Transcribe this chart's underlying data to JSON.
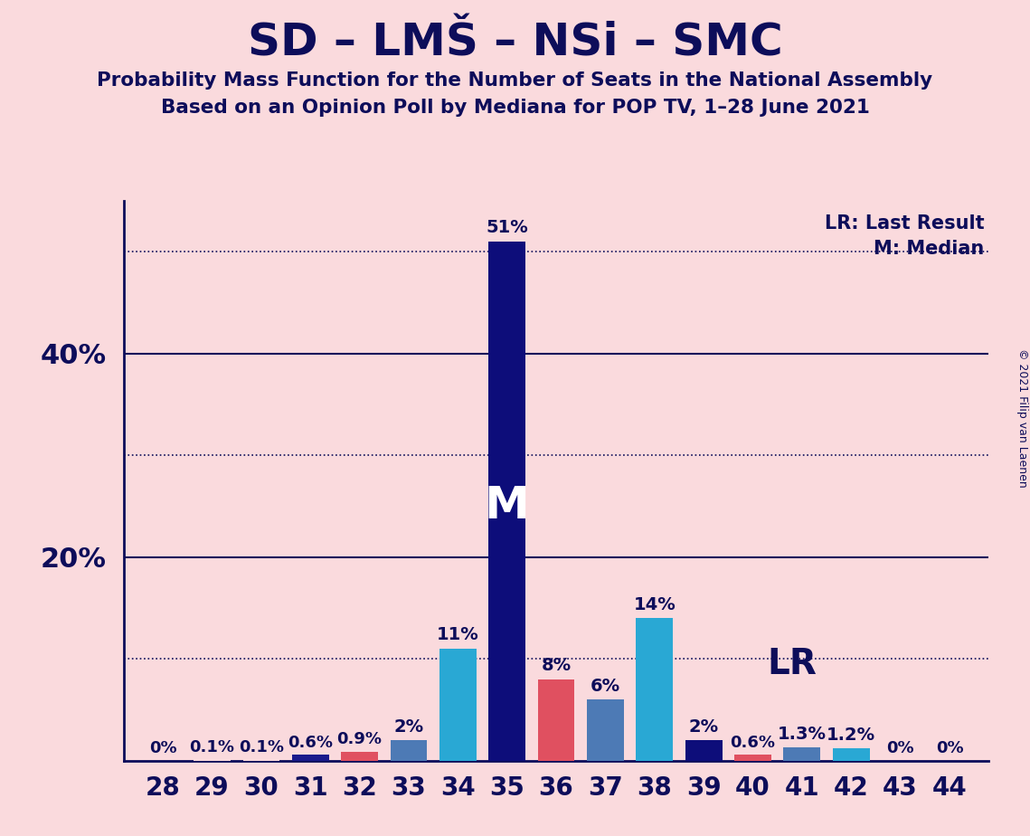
{
  "title": "SD – LMŠ – NSi – SMC",
  "subtitle1": "Probability Mass Function for the Number of Seats in the National Assembly",
  "subtitle2": "Based on an Opinion Poll by Mediana for POP TV, 1–28 June 2021",
  "copyright": "© 2021 Filip van Laenen",
  "seats": [
    28,
    29,
    30,
    31,
    32,
    33,
    34,
    35,
    36,
    37,
    38,
    39,
    40,
    41,
    42,
    43,
    44
  ],
  "probabilities": [
    0.0,
    0.1,
    0.1,
    0.6,
    0.9,
    2.0,
    11.0,
    51.0,
    8.0,
    6.0,
    14.0,
    2.0,
    0.6,
    1.3,
    1.2,
    0.0,
    0.0
  ],
  "bar_colors": [
    "#fadadd",
    "#fadadd",
    "#fadadd",
    "#1a1a8c",
    "#e05060",
    "#4d7ab5",
    "#29a8d4",
    "#0d0d7a",
    "#e05060",
    "#4d7ab5",
    "#29a8d4",
    "#0d0d7a",
    "#e05060",
    "#4d7ab5",
    "#29a8d4",
    "#fadadd",
    "#fadadd"
  ],
  "median_seat": 35,
  "lr_seat": 39,
  "background_color": "#fadadd",
  "text_color": "#0d0d5a",
  "ylim": [
    0,
    55
  ],
  "ytick_positions": [
    20,
    40
  ],
  "ytick_labels": [
    "20%",
    "40%"
  ],
  "solid_lines": [
    20,
    40
  ],
  "dotted_lines": [
    10,
    30,
    50
  ],
  "label_lr": "LR: Last Result",
  "label_m": "M: Median",
  "prob_labels": [
    "0%",
    "0.1%",
    "0.1%",
    "0.6%",
    "0.9%",
    "2%",
    "11%",
    "51%",
    "8%",
    "6%",
    "14%",
    "2%",
    "0.6%",
    "1.3%",
    "1.2%",
    "0%",
    "0%"
  ]
}
